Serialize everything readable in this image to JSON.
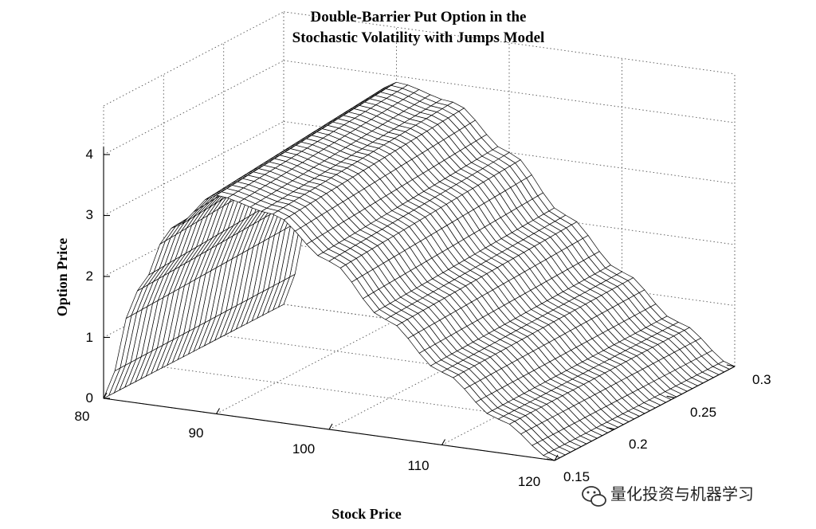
{
  "chart_data": {
    "type": "surface",
    "title_lines": [
      "Double-Barrier Put Option in the",
      "Stochastic Volatility with Jumps Model"
    ],
    "xlabel": "Stock Price",
    "ylabel": "",
    "zlabel": "Option Price",
    "x_ticks": [
      "80",
      "90",
      "100",
      "110",
      "120"
    ],
    "y_ticks": [
      "0.15",
      "0.2",
      "0.25",
      "0.3"
    ],
    "z_ticks": [
      "0",
      "1",
      "2",
      "3",
      "4"
    ],
    "x_range": [
      80,
      120
    ],
    "y_range": [
      0.15,
      0.3
    ],
    "z_range": [
      0,
      4
    ],
    "grid": true,
    "peak": {
      "stock_price": 90,
      "option_price": 3.9
    },
    "surface_samples": [
      {
        "stock_price": 80,
        "option_price": 0.0
      },
      {
        "stock_price": 83,
        "option_price": 2.0
      },
      {
        "stock_price": 86,
        "option_price": 3.2
      },
      {
        "stock_price": 90,
        "option_price": 3.9
      },
      {
        "stock_price": 95,
        "option_price": 3.7
      },
      {
        "stock_price": 100,
        "option_price": 3.0
      },
      {
        "stock_price": 105,
        "option_price": 2.1
      },
      {
        "stock_price": 110,
        "option_price": 1.3
      },
      {
        "stock_price": 115,
        "option_price": 0.6
      },
      {
        "stock_price": 120,
        "option_price": 0.0
      }
    ]
  },
  "watermark": {
    "text": "量化投资与机器学习",
    "icon": "wechat-icon"
  }
}
